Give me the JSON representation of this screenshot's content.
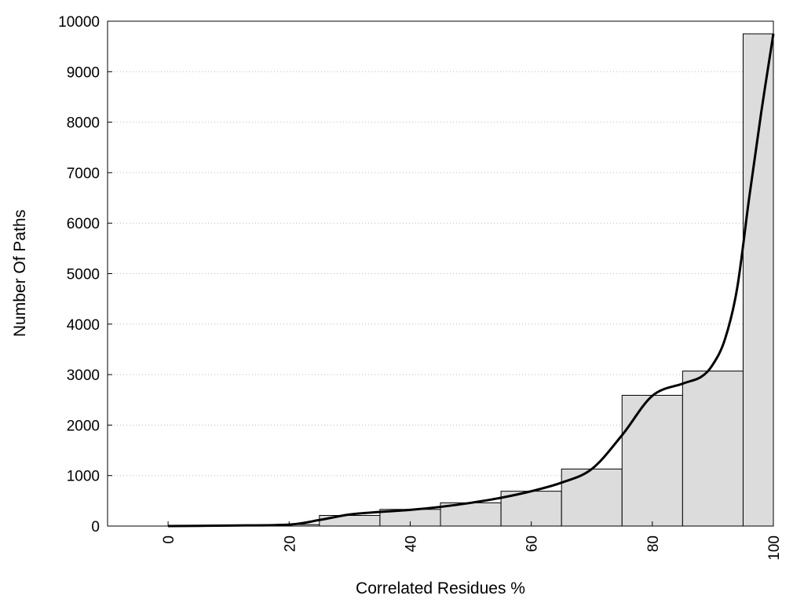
{
  "chart_data": {
    "type": "bar",
    "xlabel": "Correlated Residues %",
    "ylabel": "Number Of Paths",
    "xlim": [
      -10,
      100
    ],
    "ylim": [
      0,
      10000
    ],
    "x_ticks": [
      0,
      20,
      40,
      60,
      80,
      100
    ],
    "y_ticks": [
      0,
      1000,
      2000,
      3000,
      4000,
      5000,
      6000,
      7000,
      8000,
      9000,
      10000
    ],
    "grid": "horizontal-dotted",
    "bar_color": "#dcdcdc",
    "line_color": "#000000",
    "bins": [
      {
        "x0": 0,
        "x1": 10,
        "value": 5
      },
      {
        "x0": 10,
        "x1": 20,
        "value": 10
      },
      {
        "x0": 20,
        "x1": 25,
        "value": 30
      },
      {
        "x0": 25,
        "x1": 35,
        "value": 210
      },
      {
        "x0": 35,
        "x1": 45,
        "value": 330
      },
      {
        "x0": 45,
        "x1": 55,
        "value": 460
      },
      {
        "x0": 55,
        "x1": 65,
        "value": 690
      },
      {
        "x0": 65,
        "x1": 75,
        "value": 1130
      },
      {
        "x0": 75,
        "x1": 85,
        "value": 2590
      },
      {
        "x0": 85,
        "x1": 95,
        "value": 3070
      },
      {
        "x0": 95,
        "x1": 100,
        "value": 9750
      }
    ],
    "curve": [
      [
        0,
        0
      ],
      [
        10,
        10
      ],
      [
        20,
        30
      ],
      [
        25,
        120
      ],
      [
        30,
        230
      ],
      [
        35,
        280
      ],
      [
        40,
        320
      ],
      [
        45,
        380
      ],
      [
        50,
        460
      ],
      [
        55,
        560
      ],
      [
        60,
        690
      ],
      [
        65,
        860
      ],
      [
        70,
        1130
      ],
      [
        75,
        1800
      ],
      [
        80,
        2580
      ],
      [
        85,
        2820
      ],
      [
        88,
        2950
      ],
      [
        90,
        3200
      ],
      [
        92,
        3700
      ],
      [
        94,
        4700
      ],
      [
        96,
        6500
      ],
      [
        98,
        8200
      ],
      [
        100,
        9750
      ]
    ]
  }
}
